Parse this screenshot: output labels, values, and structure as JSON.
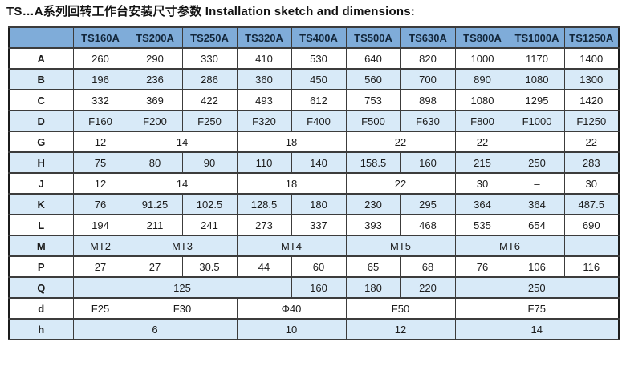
{
  "title": "TS…A系列回转工作台安装尺寸参数 Installation sketch and dimensions:",
  "colors": {
    "header_bg": "#7FACD9",
    "stripe_bg": "#D8EAF8",
    "row_bg": "#FFFFFF",
    "border_dark": "#1c1c1c",
    "border_mid": "#3c3c3c"
  },
  "table": {
    "corner_label": "",
    "columns": [
      "TS160A",
      "TS200A",
      "TS250A",
      "TS320A",
      "TS400A",
      "TS500A",
      "TS630A",
      "TS800A",
      "TS1000A",
      "TS1250A"
    ],
    "rows": [
      {
        "label": "A",
        "shaded": false,
        "cells": [
          {
            "v": "260"
          },
          {
            "v": "290"
          },
          {
            "v": "330"
          },
          {
            "v": "410"
          },
          {
            "v": "530"
          },
          {
            "v": "640"
          },
          {
            "v": "820"
          },
          {
            "v": "1000"
          },
          {
            "v": "1170"
          },
          {
            "v": "1400"
          }
        ]
      },
      {
        "label": "B",
        "shaded": true,
        "cells": [
          {
            "v": "196"
          },
          {
            "v": "236"
          },
          {
            "v": "286"
          },
          {
            "v": "360"
          },
          {
            "v": "450"
          },
          {
            "v": "560"
          },
          {
            "v": "700"
          },
          {
            "v": "890"
          },
          {
            "v": "1080"
          },
          {
            "v": "1300"
          }
        ]
      },
      {
        "label": "C",
        "shaded": false,
        "cells": [
          {
            "v": "332"
          },
          {
            "v": "369"
          },
          {
            "v": "422"
          },
          {
            "v": "493"
          },
          {
            "v": "612"
          },
          {
            "v": "753"
          },
          {
            "v": "898"
          },
          {
            "v": "1080"
          },
          {
            "v": "1295"
          },
          {
            "v": "1420"
          }
        ]
      },
      {
        "label": "D",
        "shaded": true,
        "cells": [
          {
            "v": "F160"
          },
          {
            "v": "F200"
          },
          {
            "v": "F250"
          },
          {
            "v": "F320"
          },
          {
            "v": "F400"
          },
          {
            "v": "F500"
          },
          {
            "v": "F630"
          },
          {
            "v": "F800"
          },
          {
            "v": "F1000"
          },
          {
            "v": "F1250"
          }
        ]
      },
      {
        "label": "G",
        "shaded": false,
        "cells": [
          {
            "v": "12"
          },
          {
            "v": "14",
            "s": 2
          },
          {
            "v": "18",
            "s": 2
          },
          {
            "v": "22",
            "s": 2
          },
          {
            "v": "22"
          },
          {
            "v": "–"
          },
          {
            "v": "22"
          }
        ]
      },
      {
        "label": "H",
        "shaded": true,
        "cells": [
          {
            "v": "75"
          },
          {
            "v": "80"
          },
          {
            "v": "90"
          },
          {
            "v": "110"
          },
          {
            "v": "140"
          },
          {
            "v": "158.5"
          },
          {
            "v": "160"
          },
          {
            "v": "215"
          },
          {
            "v": "250"
          },
          {
            "v": "283"
          }
        ]
      },
      {
        "label": "J",
        "shaded": false,
        "cells": [
          {
            "v": "12"
          },
          {
            "v": "14",
            "s": 2
          },
          {
            "v": "18",
            "s": 2
          },
          {
            "v": "22",
            "s": 2
          },
          {
            "v": "30"
          },
          {
            "v": "–"
          },
          {
            "v": "30"
          }
        ]
      },
      {
        "label": "K",
        "shaded": true,
        "cells": [
          {
            "v": "76"
          },
          {
            "v": "91.25"
          },
          {
            "v": "102.5"
          },
          {
            "v": "128.5"
          },
          {
            "v": "180"
          },
          {
            "v": "230"
          },
          {
            "v": "295"
          },
          {
            "v": "364"
          },
          {
            "v": "364"
          },
          {
            "v": "487.5"
          }
        ]
      },
      {
        "label": "L",
        "shaded": false,
        "cells": [
          {
            "v": "194"
          },
          {
            "v": "211"
          },
          {
            "v": "241"
          },
          {
            "v": "273"
          },
          {
            "v": "337"
          },
          {
            "v": "393"
          },
          {
            "v": "468"
          },
          {
            "v": "535"
          },
          {
            "v": "654"
          },
          {
            "v": "690"
          }
        ]
      },
      {
        "label": "M",
        "shaded": true,
        "cells": [
          {
            "v": "MT2"
          },
          {
            "v": "MT3",
            "s": 2
          },
          {
            "v": "MT4",
            "s": 2
          },
          {
            "v": "MT5",
            "s": 2
          },
          {
            "v": "MT6",
            "s": 2
          },
          {
            "v": "–"
          }
        ]
      },
      {
        "label": "P",
        "shaded": false,
        "cells": [
          {
            "v": "27"
          },
          {
            "v": "27"
          },
          {
            "v": "30.5"
          },
          {
            "v": "44"
          },
          {
            "v": "60"
          },
          {
            "v": "65"
          },
          {
            "v": "68"
          },
          {
            "v": "76"
          },
          {
            "v": "106"
          },
          {
            "v": "116"
          }
        ]
      },
      {
        "label": "Q",
        "shaded": true,
        "cells": [
          {
            "v": "125",
            "s": 4
          },
          {
            "v": "160"
          },
          {
            "v": "180"
          },
          {
            "v": "220"
          },
          {
            "v": "250",
            "s": 3
          }
        ]
      },
      {
        "label": "d",
        "shaded": false,
        "cells": [
          {
            "v": "F25"
          },
          {
            "v": "F30",
            "s": 2
          },
          {
            "v": "Φ40",
            "s": 2
          },
          {
            "v": "F50",
            "s": 2
          },
          {
            "v": "F75",
            "s": 3
          }
        ]
      },
      {
        "label": "h",
        "shaded": true,
        "cells": [
          {
            "v": "6",
            "s": 3
          },
          {
            "v": "10",
            "s": 2
          },
          {
            "v": "12",
            "s": 2
          },
          {
            "v": "14",
            "s": 3
          }
        ]
      }
    ]
  }
}
